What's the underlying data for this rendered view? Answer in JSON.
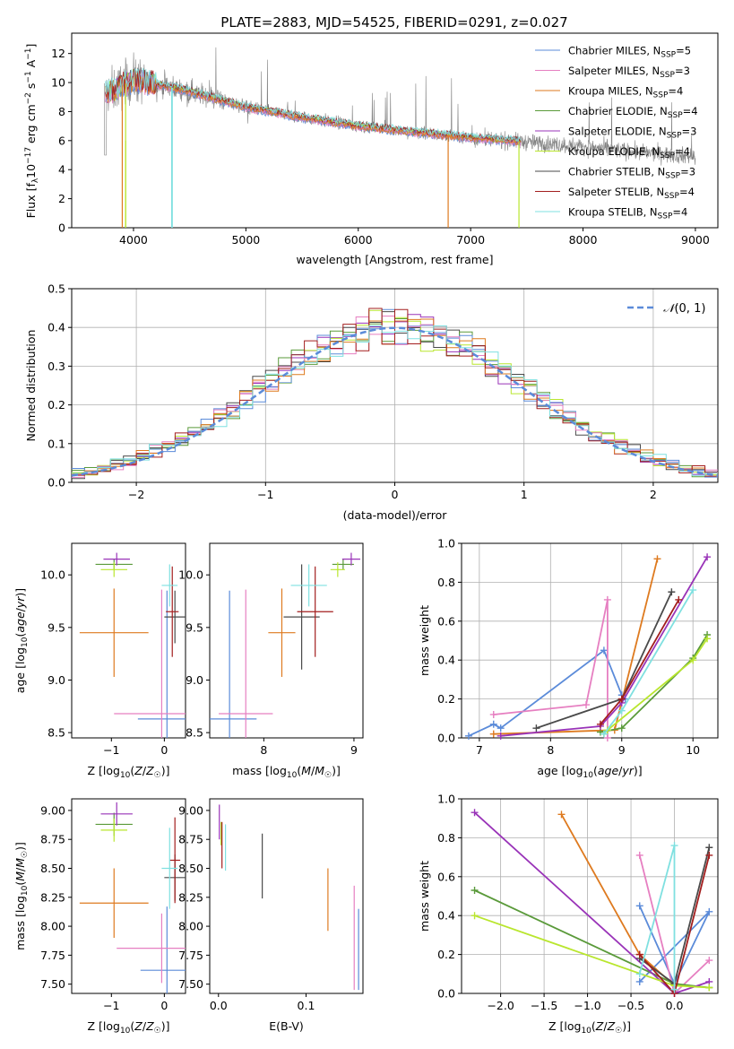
{
  "colors": [
    "#5b8bd9",
    "#e67fc1",
    "#de7a1f",
    "#5a9a3a",
    "#9933b8",
    "#b9e62e",
    "#4a4a4a",
    "#a31e1e",
    "#7fe0e0"
  ],
  "series_names": [
    "Chabrier MILES, N<sub>SSP</sub>=5",
    "Salpeter MILES, N<sub>SSP</sub>=3",
    "Kroupa MILES, N<sub>SSP</sub>=4",
    "Chabrier ELODIE, N<sub>SSP</sub>=4",
    "Salpeter ELODIE, N<sub>SSP</sub>=3",
    "Kroupa ELODIE, N<sub>SSP</sub>=4",
    "Chabrier STELIB, N<sub>SSP</sub>=3",
    "Salpeter STELIB, N<sub>SSP</sub>=4",
    "Kroupa STELIB, N<sub>SSP</sub>=4"
  ],
  "chart_data": [
    {
      "id": "spectrum",
      "type": "line",
      "title": "PLATE=2883, MJD=54525, FIBERID=0291, z=0.027",
      "xlabel": "wavelength [Angstrom, rest frame]",
      "ylabel": "Flux [f_λ 10^-17 erg cm^-2 s^-1 A^-1]",
      "xlim": [
        3450,
        9200
      ],
      "ylim": [
        0,
        13.4
      ],
      "xticks": [
        4000,
        5000,
        6000,
        7000,
        8000,
        9000
      ],
      "yticks": [
        0,
        2,
        4,
        6,
        8,
        10,
        12
      ],
      "data_envelope": {
        "x": [
          3750,
          4000,
          4500,
          5000,
          5500,
          6000,
          6500,
          7000,
          7500,
          8000,
          8500,
          9000
        ],
        "y": [
          9.2,
          10.2,
          9.4,
          8.3,
          7.6,
          7.0,
          6.6,
          6.2,
          5.9,
          5.6,
          5.2,
          4.9
        ]
      },
      "legend": [
        "Chabrier MILES, N_SSP=5",
        "Salpeter MILES, N_SSP=3",
        "Kroupa MILES, N_SSP=4",
        "Chabrier ELODIE, N_SSP=4",
        "Salpeter ELODIE, N_SSP=3",
        "Kroupa ELODIE, N_SSP=4",
        "Chabrier STELIB, N_SSP=3",
        "Salpeter STELIB, N_SSP=4",
        "Kroupa STELIB, N_SSP=4"
      ],
      "legend_position": "upper right"
    },
    {
      "id": "residuals",
      "type": "histogram",
      "xlabel": "(data-model)/error",
      "ylabel": "Normed distribution",
      "xlim": [
        -2.5,
        2.5
      ],
      "ylim": [
        0,
        0.5
      ],
      "xticks": [
        -2,
        -1,
        0,
        1,
        2
      ],
      "yticks": [
        0.0,
        0.1,
        0.2,
        0.3,
        0.4,
        0.5
      ],
      "grid": true,
      "reference": "N(0,1)",
      "legend_position": "upper right"
    },
    {
      "id": "age_vs_Z",
      "type": "errorbar",
      "xlabel": "Z [log10(Z/Z☉)]",
      "ylabel": "age [log10(age/yr)]",
      "xlim": [
        -1.75,
        0.4
      ],
      "ylim": [
        8.45,
        10.3
      ],
      "xticks": [
        -1,
        0
      ],
      "yticks": [
        8.5,
        9.0,
        9.5,
        10.0
      ],
      "points": [
        {
          "series": 0,
          "x": 0.05,
          "y": 8.63,
          "xerr": 0.55,
          "yerr": 1.22
        },
        {
          "series": 1,
          "x": -0.05,
          "y": 8.68,
          "xerr": 0.9,
          "yerr": 1.18
        },
        {
          "series": 2,
          "x": -0.95,
          "y": 9.45,
          "xerr": 0.65,
          "yerr": 0.42
        },
        {
          "series": 3,
          "x": -0.95,
          "y": 10.1,
          "xerr": 0.35,
          "yerr": 0.05
        },
        {
          "series": 4,
          "x": -0.9,
          "y": 10.15,
          "xerr": 0.25,
          "yerr": 0.06
        },
        {
          "series": 5,
          "x": -0.95,
          "y": 10.05,
          "xerr": 0.25,
          "yerr": 0.07
        },
        {
          "series": 6,
          "x": 0.2,
          "y": 9.6,
          "xerr": 0.2,
          "yerr": 0.25
        },
        {
          "series": 7,
          "x": 0.15,
          "y": 9.65,
          "xerr": 0.12,
          "yerr": 0.43
        },
        {
          "series": 8,
          "x": 0.1,
          "y": 9.9,
          "xerr": 0.15,
          "yerr": 0.2
        }
      ]
    },
    {
      "id": "age_vs_mass",
      "type": "errorbar",
      "xlabel": "mass [log10(M/M☉)]",
      "ylabel": "",
      "xlim": [
        7.4,
        9.1
      ],
      "ylim": [
        8.45,
        10.3
      ],
      "xticks": [
        8,
        9
      ],
      "yticks": [
        8.5,
        9.0,
        9.5,
        10.0
      ],
      "points": [
        {
          "series": 0,
          "x": 7.62,
          "y": 8.63,
          "xerr": 0.3,
          "yerr": 1.22
        },
        {
          "series": 1,
          "x": 7.8,
          "y": 8.68,
          "xerr": 0.3,
          "yerr": 1.18
        },
        {
          "series": 2,
          "x": 8.2,
          "y": 9.45,
          "xerr": 0.15,
          "yerr": 0.42
        },
        {
          "series": 3,
          "x": 8.88,
          "y": 10.1,
          "xerr": 0.12,
          "yerr": 0.05
        },
        {
          "series": 4,
          "x": 8.97,
          "y": 10.15,
          "xerr": 0.1,
          "yerr": 0.06
        },
        {
          "series": 5,
          "x": 8.82,
          "y": 10.05,
          "xerr": 0.08,
          "yerr": 0.07
        },
        {
          "series": 6,
          "x": 8.42,
          "y": 9.6,
          "xerr": 0.2,
          "yerr": 0.5
        },
        {
          "series": 7,
          "x": 8.57,
          "y": 9.65,
          "xerr": 0.2,
          "yerr": 0.43
        },
        {
          "series": 8,
          "x": 8.5,
          "y": 9.9,
          "xerr": 0.2,
          "yerr": 0.2
        }
      ]
    },
    {
      "id": "weight_vs_age",
      "type": "line",
      "xlabel": "age [log10(age/yr)]",
      "ylabel": "mass weight",
      "xlim": [
        6.75,
        10.35
      ],
      "ylim": [
        0,
        1.0
      ],
      "xticks": [
        7,
        8,
        9,
        10
      ],
      "yticks": [
        0.0,
        0.2,
        0.4,
        0.6,
        0.8,
        1.0
      ],
      "grid": true,
      "series": [
        {
          "index": 0,
          "x": [
            6.85,
            7.2,
            7.3,
            8.75,
            9.0,
            9.05
          ],
          "y": [
            0.01,
            0.07,
            0.05,
            0.45,
            0.22,
            0.2
          ]
        },
        {
          "index": 1,
          "x": [
            7.2,
            8.5,
            8.8,
            8.8
          ],
          "y": [
            0.12,
            0.17,
            0.71,
            0.0
          ]
        },
        {
          "index": 2,
          "x": [
            7.2,
            8.9,
            9.5
          ],
          "y": [
            0.02,
            0.04,
            0.92
          ]
        },
        {
          "index": 3,
          "x": [
            8.7,
            9.0,
            10.0,
            10.2
          ],
          "y": [
            0.03,
            0.05,
            0.41,
            0.53
          ]
        },
        {
          "index": 4,
          "x": [
            7.3,
            8.7,
            9.0,
            10.2
          ],
          "y": [
            0.01,
            0.06,
            0.18,
            0.93
          ]
        },
        {
          "index": 5,
          "x": [
            8.75,
            8.8,
            10.0,
            10.2
          ],
          "y": [
            0.02,
            0.04,
            0.4,
            0.51
          ]
        },
        {
          "index": 6,
          "x": [
            7.8,
            9.0,
            9.7
          ],
          "y": [
            0.05,
            0.2,
            0.75
          ]
        },
        {
          "index": 7,
          "x": [
            8.7,
            9.0,
            9.8
          ],
          "y": [
            0.07,
            0.2,
            0.71
          ]
        },
        {
          "index": 8,
          "x": [
            8.75,
            9.0,
            10.0
          ],
          "y": [
            0.02,
            0.14,
            0.76
          ]
        }
      ]
    },
    {
      "id": "mass_vs_Z",
      "type": "errorbar",
      "xlabel": "Z [log10(Z/Z☉)]",
      "ylabel": "mass [log10(M/M☉)]",
      "xlim": [
        -1.75,
        0.4
      ],
      "ylim": [
        7.42,
        9.1
      ],
      "xticks": [
        -1,
        0
      ],
      "yticks": [
        7.5,
        7.75,
        8.0,
        8.25,
        8.5,
        8.75,
        9.0
      ],
      "points": [
        {
          "series": 0,
          "x": 0.05,
          "y": 7.62,
          "xerr": 0.5,
          "yerr": 0.55
        },
        {
          "series": 1,
          "x": -0.05,
          "y": 7.81,
          "xerr": 0.85,
          "yerr": 0.3
        },
        {
          "series": 2,
          "x": -0.95,
          "y": 8.2,
          "xerr": 0.65,
          "yerr": 0.3
        },
        {
          "series": 3,
          "x": -0.95,
          "y": 8.88,
          "xerr": 0.35,
          "yerr": 0.1
        },
        {
          "series": 4,
          "x": -0.9,
          "y": 8.97,
          "xerr": 0.3,
          "yerr": 0.1
        },
        {
          "series": 5,
          "x": -0.95,
          "y": 8.83,
          "xerr": 0.25,
          "yerr": 0.1
        },
        {
          "series": 6,
          "x": 0.2,
          "y": 8.42,
          "xerr": 0.2,
          "yerr": 0.2
        },
        {
          "series": 7,
          "x": 0.2,
          "y": 8.57,
          "xerr": 0.1,
          "yerr": 0.37
        },
        {
          "series": 8,
          "x": 0.1,
          "y": 8.5,
          "xerr": 0.15,
          "yerr": 0.35
        }
      ]
    },
    {
      "id": "mass_vs_ebv",
      "type": "errorbar",
      "xlabel": "E(B-V)",
      "ylabel": "",
      "xlim": [
        -0.01,
        0.165
      ],
      "ylim": [
        7.42,
        9.1
      ],
      "xticks": [
        0.0,
        0.1
      ],
      "yticks": [
        7.5,
        7.75,
        8.0,
        8.25,
        8.5,
        8.75,
        9.0
      ],
      "points": [
        {
          "series": 0,
          "x": 0.16,
          "y": 7.8,
          "yerr": 0.35
        },
        {
          "series": 1,
          "x": 0.155,
          "y": 7.9,
          "yerr": 0.45
        },
        {
          "series": 2,
          "x": 0.125,
          "y": 8.23,
          "yerr": 0.27
        },
        {
          "series": 3,
          "x": 0.003,
          "y": 8.8,
          "yerr": 0.1
        },
        {
          "series": 4,
          "x": 0.001,
          "y": 8.9,
          "yerr": 0.15
        },
        {
          "series": 5,
          "x": 0.003,
          "y": 8.8,
          "yerr": 0.1
        },
        {
          "series": 6,
          "x": 0.05,
          "y": 8.52,
          "yerr": 0.28
        },
        {
          "series": 7,
          "x": 0.004,
          "y": 8.7,
          "yerr": 0.2
        },
        {
          "series": 8,
          "x": 0.008,
          "y": 8.68,
          "yerr": 0.2
        }
      ]
    },
    {
      "id": "weight_vs_Z",
      "type": "line",
      "xlabel": "Z [log10(Z/Z☉)]",
      "ylabel": "mass weight",
      "xlim": [
        -2.45,
        0.5
      ],
      "ylim": [
        0,
        1.0
      ],
      "xticks": [
        -2.0,
        -1.5,
        -1.0,
        -0.5,
        0.0
      ],
      "yticks": [
        0.0,
        0.2,
        0.4,
        0.6,
        0.8,
        1.0
      ],
      "grid": true,
      "series": [
        {
          "index": 0,
          "x": [
            -0.4,
            0.0,
            0.4,
            -0.4
          ],
          "y": [
            0.45,
            0.05,
            0.42,
            0.06
          ]
        },
        {
          "index": 1,
          "x": [
            -0.4,
            0.0,
            0.4
          ],
          "y": [
            0.71,
            0.0,
            0.17
          ]
        },
        {
          "index": 2,
          "x": [
            -1.3,
            -0.4,
            0.0
          ],
          "y": [
            0.92,
            0.2,
            0.04
          ]
        },
        {
          "index": 3,
          "x": [
            -2.3,
            0.0,
            0.4
          ],
          "y": [
            0.53,
            0.05,
            0.03
          ]
        },
        {
          "index": 4,
          "x": [
            -2.3,
            0.0,
            0.4
          ],
          "y": [
            0.93,
            0.0,
            0.06
          ]
        },
        {
          "index": 5,
          "x": [
            -2.3,
            0.0,
            0.4
          ],
          "y": [
            0.4,
            0.04,
            0.03
          ]
        },
        {
          "index": 6,
          "x": [
            -0.4,
            0.0,
            0.4
          ],
          "y": [
            0.18,
            0.05,
            0.75
          ]
        },
        {
          "index": 7,
          "x": [
            -0.4,
            0.0,
            0.4
          ],
          "y": [
            0.2,
            0.0,
            0.71
          ]
        },
        {
          "index": 8,
          "x": [
            -0.4,
            0.0,
            0.0
          ],
          "y": [
            0.1,
            0.76,
            0.02
          ]
        }
      ]
    }
  ],
  "reference_label": "N(0,1)"
}
